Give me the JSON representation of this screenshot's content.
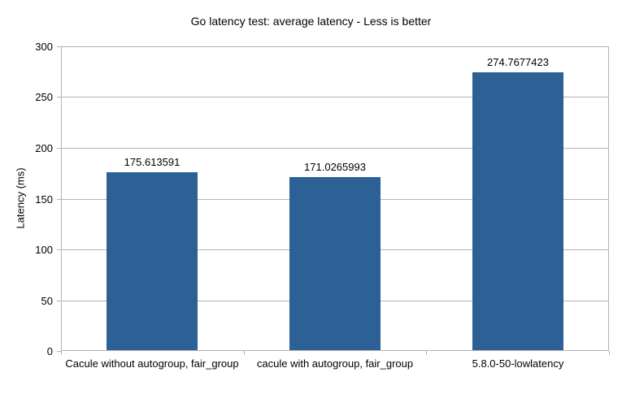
{
  "chart_data": {
    "type": "bar",
    "title": "Go latency test: average latency - Less is better",
    "ylabel": "Latency (ms)",
    "xlabel": "",
    "categories": [
      "Cacule without autogroup, fair_group",
      "cacule with autogroup, fair_group",
      "5.8.0-50-lowlatency"
    ],
    "values": [
      175.613591,
      171.0265993,
      274.7677423
    ],
    "value_labels": [
      "175.613591",
      "171.0265993",
      "274.7677423"
    ],
    "ylim": [
      0,
      300
    ],
    "yticks": [
      0,
      50,
      100,
      150,
      200,
      250,
      300
    ],
    "grid": true,
    "legend": "none",
    "bar_color": "#2d6196",
    "grid_color": "#b3b3b3",
    "text_color": "#000000",
    "background_color": "#ffffff"
  }
}
